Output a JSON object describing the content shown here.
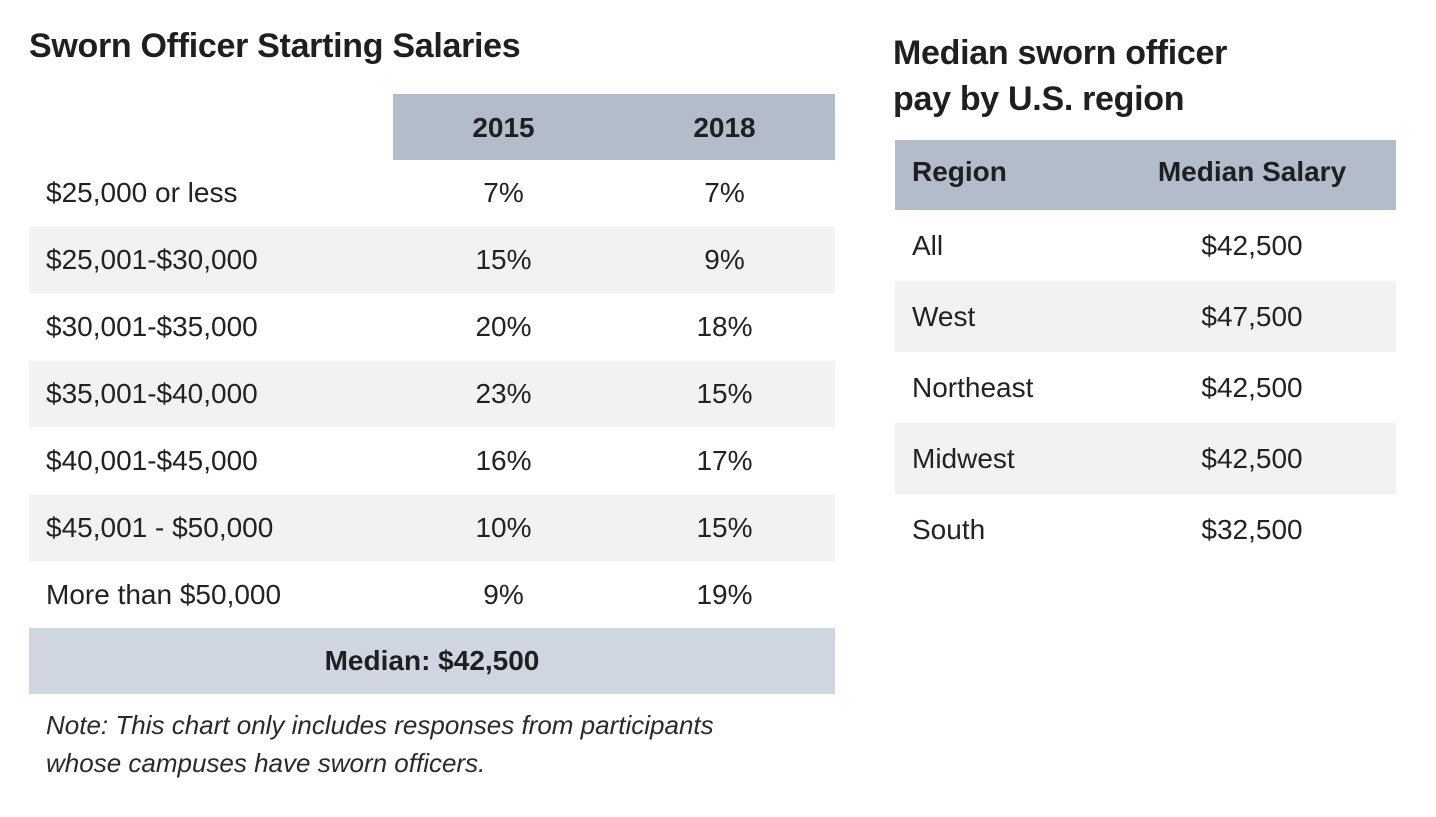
{
  "left_title": "Sworn Officer Starting Salaries",
  "right_title_line1": "Median sworn officer",
  "right_title_line2": "pay by U.S. region",
  "chart_data": [
    {
      "type": "table",
      "title": "Sworn Officer Starting Salaries",
      "columns": [
        "",
        "2015",
        "2018"
      ],
      "rows": [
        {
          "label": "$25,000 or less",
          "v2015": "7%",
          "v2018": "7%"
        },
        {
          "label": "$25,001-$30,000",
          "v2015": "15%",
          "v2018": "9%"
        },
        {
          "label": "$30,001-$35,000",
          "v2015": "20%",
          "v2018": "18%"
        },
        {
          "label": "$35,001-$40,000",
          "v2015": "23%",
          "v2018": "15%"
        },
        {
          "label": "$40,001-$45,000",
          "v2015": "16%",
          "v2018": "17%"
        },
        {
          "label": "$45,001 - $50,000",
          "v2015": "10%",
          "v2018": "15%"
        },
        {
          "label": "More than $50,000",
          "v2015": "9%",
          "v2018": "19%"
        }
      ],
      "footer": "Median: $42,500",
      "note_line1": "Note: This chart only includes responses from participants",
      "note_line2": "whose campuses have sworn officers."
    },
    {
      "type": "table",
      "title": "Median sworn officer pay by U.S. region",
      "columns": [
        "Region",
        "Median Salary"
      ],
      "rows": [
        {
          "region": "All",
          "salary": "$42,500"
        },
        {
          "region": "West",
          "salary": "$47,500"
        },
        {
          "region": "Northeast",
          "salary": "$42,500"
        },
        {
          "region": "Midwest",
          "salary": "$42,500"
        },
        {
          "region": "South",
          "salary": "$32,500"
        }
      ]
    }
  ],
  "colors": {
    "header_bg": "#b3bccb",
    "median_bg": "#d0d6e1",
    "stripe_bg": "#f2f2f4"
  }
}
